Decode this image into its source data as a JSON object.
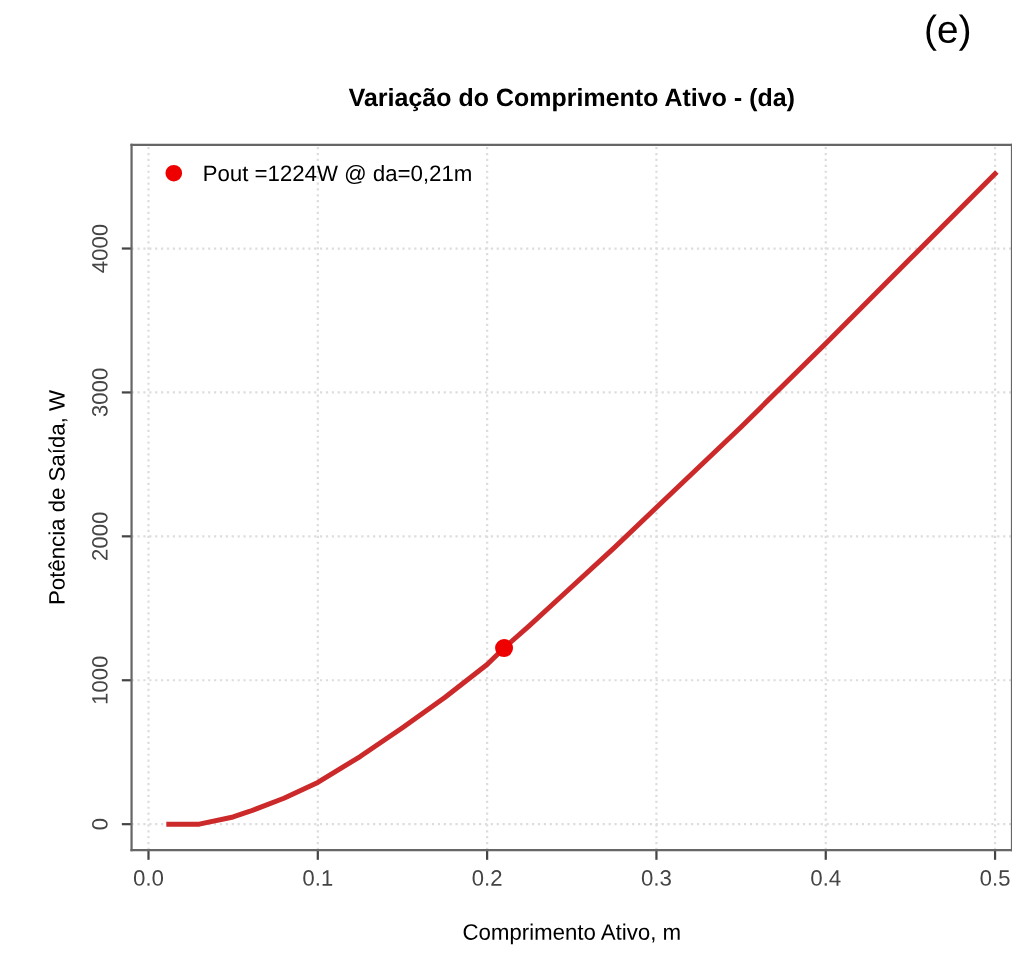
{
  "chart_data": {
    "type": "line",
    "title": "Variação do Comprimento Ativo - (da)",
    "xlabel": "Comprimento Ativo, m",
    "ylabel": "Potência de Saída, W",
    "annotations": [
      "(e)"
    ],
    "series": [
      {
        "color": "#cc2a2a",
        "x": [
          0.012,
          0.03,
          0.05,
          0.06,
          0.08,
          0.1,
          0.125,
          0.15,
          0.175,
          0.2,
          0.21,
          0.225,
          0.25,
          0.275,
          0.3,
          0.35,
          0.4,
          0.45,
          0.5
        ],
        "values": [
          0,
          0,
          50,
          90,
          180,
          290,
          470,
          670,
          880,
          1110,
          1224,
          1380,
          1650,
          1920,
          2200,
          2760,
          3340,
          3930,
          4520
        ]
      },
      {
        "type": "scatter",
        "name": "Pout =1224W @ da=0,21m",
        "color": "#ee0000",
        "x": [
          0.21
        ],
        "values": [
          1224
        ],
        "marker": "circle"
      }
    ],
    "xlim": [
      -0.01,
      0.51
    ],
    "ylim": [
      -180,
      4720
    ],
    "xticks": [
      {
        "value": 0,
        "label": "0.0"
      },
      0.1,
      0.2,
      0.3,
      0.4,
      0.5
    ],
    "yticks": [
      0,
      1000,
      2000,
      3000,
      4000
    ],
    "grid": true,
    "legend": "top left"
  }
}
